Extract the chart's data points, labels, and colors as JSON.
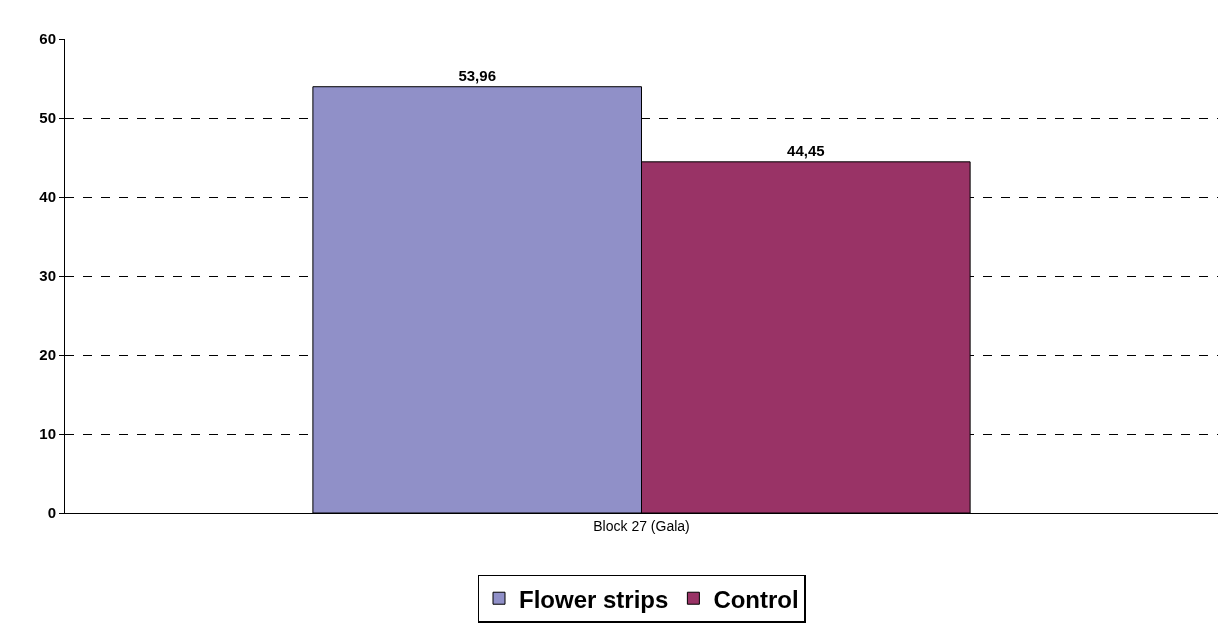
{
  "chart_data": {
    "type": "bar",
    "categories": [
      "Block 27 (Gala)"
    ],
    "series": [
      {
        "name": "Flower strips",
        "color": "#9090c8",
        "values": [
          53.96
        ],
        "value_labels": [
          "53,96"
        ]
      },
      {
        "name": "Control",
        "color": "#993366",
        "values": [
          44.45
        ],
        "value_labels": [
          "44,45"
        ]
      }
    ],
    "ylim": [
      0,
      60
    ],
    "yticks": [
      0,
      10,
      20,
      30,
      40,
      50,
      60
    ],
    "grid": "y",
    "legend": "bottom"
  }
}
